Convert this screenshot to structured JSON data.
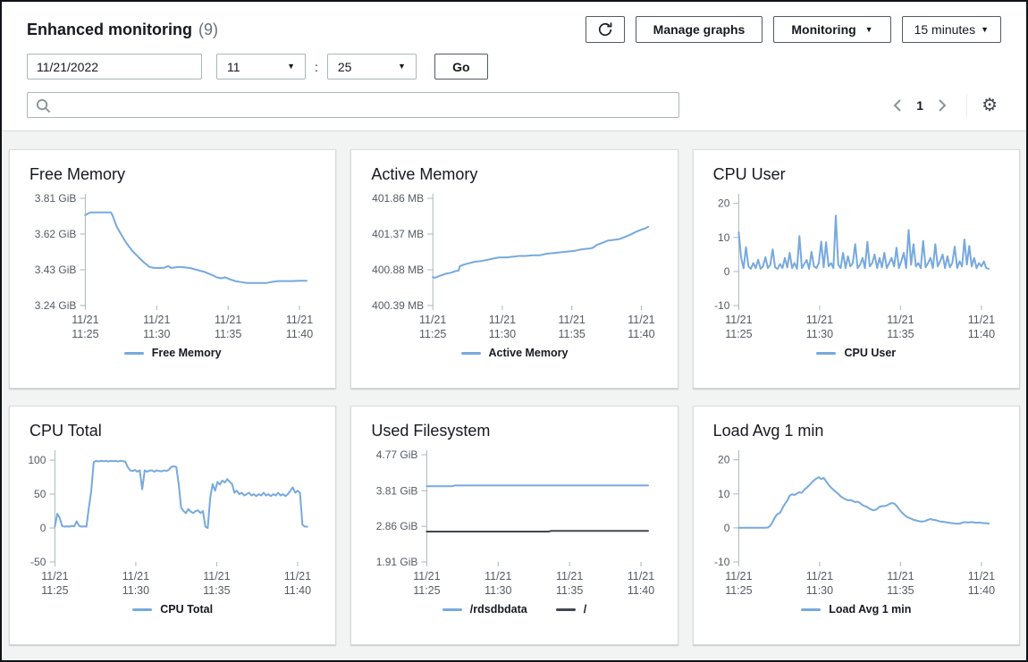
{
  "header": {
    "title": "Enhanced monitoring",
    "count": "(9)",
    "buttons": {
      "manage_graphs": "Manage graphs",
      "monitoring": "Monitoring",
      "time_range": "15 minutes"
    },
    "datetime": {
      "date": "11/21/2022",
      "hour": "11",
      "separator": ":",
      "minute": "25",
      "go": "Go"
    },
    "search": {
      "placeholder": ""
    },
    "pagination": {
      "page": "1"
    }
  },
  "colors": {
    "series_blue": "#77a9dd",
    "series_dark": "#414750",
    "axis": "#aab7b8",
    "tick_text": "#545b64"
  },
  "chart_data": [
    {
      "type": "line",
      "title": "Free Memory",
      "x_domain": [
        0,
        16
      ],
      "x_ticks": [
        {
          "pos": 0,
          "line1": "11/21",
          "line2": "11:25"
        },
        {
          "pos": 5,
          "line1": "11/21",
          "line2": "11:30"
        },
        {
          "pos": 10,
          "line1": "11/21",
          "line2": "11:35"
        },
        {
          "pos": 15,
          "line1": "11/21",
          "line2": "11:40"
        }
      ],
      "ylim": [
        3.24,
        3.81
      ],
      "y_ticks": [
        {
          "v": 3.81,
          "label": "3.81 GiB"
        },
        {
          "v": 3.62,
          "label": "3.62 GiB"
        },
        {
          "v": 3.43,
          "label": "3.43 GiB"
        },
        {
          "v": 3.24,
          "label": "3.24 GiB"
        }
      ],
      "series": [
        {
          "name": "Free Memory",
          "color": "#77a9dd",
          "points": [
            [
              0,
              3.72
            ],
            [
              0.2,
              3.73
            ],
            [
              0.4,
              3.735
            ],
            [
              1.8,
              3.735
            ],
            [
              1.9,
              3.72
            ],
            [
              2.0,
              3.7
            ],
            [
              2.2,
              3.66
            ],
            [
              2.5,
              3.62
            ],
            [
              2.9,
              3.57
            ],
            [
              3.3,
              3.53
            ],
            [
              3.7,
              3.5
            ],
            [
              4.1,
              3.47
            ],
            [
              4.5,
              3.445
            ],
            [
              4.8,
              3.44
            ],
            [
              5.5,
              3.44
            ],
            [
              5.8,
              3.45
            ],
            [
              6.0,
              3.44
            ],
            [
              6.6,
              3.445
            ],
            [
              7.3,
              3.44
            ],
            [
              7.8,
              3.43
            ],
            [
              8.3,
              3.42
            ],
            [
              8.8,
              3.405
            ],
            [
              9.2,
              3.39
            ],
            [
              9.5,
              3.385
            ],
            [
              9.8,
              3.39
            ],
            [
              10.1,
              3.38
            ],
            [
              10.5,
              3.37
            ],
            [
              10.9,
              3.365
            ],
            [
              11.3,
              3.36
            ],
            [
              12.0,
              3.36
            ],
            [
              12.7,
              3.36
            ],
            [
              13.0,
              3.365
            ],
            [
              13.5,
              3.37
            ],
            [
              14.0,
              3.37
            ],
            [
              14.5,
              3.37
            ],
            [
              15.0,
              3.372
            ],
            [
              15.5,
              3.372
            ]
          ]
        }
      ]
    },
    {
      "type": "line",
      "title": "Active Memory",
      "x_domain": [
        0,
        16
      ],
      "x_ticks": [
        {
          "pos": 0,
          "line1": "11/21",
          "line2": "11:25"
        },
        {
          "pos": 5,
          "line1": "11/21",
          "line2": "11:30"
        },
        {
          "pos": 10,
          "line1": "11/21",
          "line2": "11:35"
        },
        {
          "pos": 15,
          "line1": "11/21",
          "line2": "11:40"
        }
      ],
      "ylim": [
        400.39,
        401.86
      ],
      "y_ticks": [
        {
          "v": 401.86,
          "label": "401.86 MB"
        },
        {
          "v": 401.37,
          "label": "401.37 MB"
        },
        {
          "v": 400.88,
          "label": "400.88 MB"
        },
        {
          "v": 400.39,
          "label": "400.39 MB"
        }
      ],
      "series": [
        {
          "name": "Active Memory",
          "color": "#77a9dd",
          "points": [
            [
              0,
              400.78
            ],
            [
              0.15,
              400.77
            ],
            [
              0.4,
              400.79
            ],
            [
              0.7,
              400.81
            ],
            [
              1.0,
              400.83
            ],
            [
              1.3,
              400.84
            ],
            [
              1.6,
              400.86
            ],
            [
              1.85,
              400.87
            ],
            [
              1.95,
              400.93
            ],
            [
              2.2,
              400.95
            ],
            [
              2.6,
              400.97
            ],
            [
              3.0,
              400.99
            ],
            [
              3.5,
              401.0
            ],
            [
              4.0,
              401.02
            ],
            [
              4.5,
              401.04
            ],
            [
              4.8,
              401.05
            ],
            [
              5.3,
              401.05
            ],
            [
              5.8,
              401.06
            ],
            [
              6.2,
              401.07
            ],
            [
              6.7,
              401.07
            ],
            [
              7.2,
              401.08
            ],
            [
              7.7,
              401.08
            ],
            [
              8.2,
              401.1
            ],
            [
              8.7,
              401.11
            ],
            [
              9.2,
              401.12
            ],
            [
              9.7,
              401.13
            ],
            [
              10.2,
              401.14
            ],
            [
              10.7,
              401.16
            ],
            [
              11.2,
              401.17
            ],
            [
              11.5,
              401.18
            ],
            [
              11.8,
              401.22
            ],
            [
              12.2,
              401.25
            ],
            [
              12.6,
              401.28
            ],
            [
              13.0,
              401.29
            ],
            [
              13.4,
              401.3
            ],
            [
              13.8,
              401.33
            ],
            [
              14.2,
              401.36
            ],
            [
              14.6,
              401.4
            ],
            [
              15.0,
              401.43
            ],
            [
              15.3,
              401.45
            ],
            [
              15.5,
              401.47
            ]
          ]
        }
      ]
    },
    {
      "type": "line",
      "title": "CPU User",
      "x_domain": [
        0,
        16
      ],
      "x_ticks": [
        {
          "pos": 0,
          "line1": "11/21",
          "line2": "11:25"
        },
        {
          "pos": 5,
          "line1": "11/21",
          "line2": "11:30"
        },
        {
          "pos": 10,
          "line1": "11/21",
          "line2": "11:35"
        },
        {
          "pos": 15,
          "line1": "11/21",
          "line2": "11:40"
        }
      ],
      "ylim": [
        -10,
        21.5
      ],
      "y_ticks": [
        {
          "v": 20,
          "label": "20"
        },
        {
          "v": 10,
          "label": "10"
        },
        {
          "v": 0,
          "label": "0"
        },
        {
          "v": -10,
          "label": "-10"
        }
      ],
      "series": [
        {
          "name": "CPU User",
          "color": "#77a9dd",
          "x_start": 0,
          "x_step": 0.15,
          "values": [
            11.5,
            4,
            1,
            7.2,
            1.5,
            0.8,
            2.5,
            1,
            3.5,
            0.8,
            1.5,
            4.2,
            1,
            2,
            6.5,
            1.2,
            0.8,
            2.2,
            1,
            4,
            1.2,
            5.5,
            1,
            2.5,
            0.8,
            10.4,
            1,
            2.2,
            3.4,
            0.8,
            5.8,
            1.5,
            1,
            2.5,
            8.8,
            1.2,
            8.6,
            1.5,
            2.5,
            1,
            16.4,
            2,
            1,
            5.5,
            1,
            4.5,
            1.5,
            2.5,
            8,
            1,
            2,
            4,
            1,
            8.7,
            1.5,
            2.5,
            5,
            1,
            4,
            1.2,
            5.5,
            1,
            2.5,
            4,
            1.5,
            7,
            1,
            3,
            5.5,
            1,
            12.2,
            2,
            8,
            1.5,
            2.5,
            1,
            9,
            1.2,
            2.5,
            4,
            1,
            8,
            1.5,
            3,
            5,
            1,
            4.5,
            1.2,
            2.5,
            7.3,
            1,
            3,
            1.5,
            9.4,
            2,
            7.5,
            1.5,
            4,
            1,
            2.5,
            1.5,
            3,
            1,
            0.8
          ]
        }
      ]
    },
    {
      "type": "line",
      "title": "CPU Total",
      "x_domain": [
        0,
        16
      ],
      "x_ticks": [
        {
          "pos": 0,
          "line1": "11/21",
          "line2": "11:25"
        },
        {
          "pos": 5,
          "line1": "11/21",
          "line2": "11:30"
        },
        {
          "pos": 10,
          "line1": "11/21",
          "line2": "11:35"
        },
        {
          "pos": 15,
          "line1": "11/21",
          "line2": "11:40"
        }
      ],
      "ylim": [
        -50,
        108
      ],
      "y_ticks": [
        {
          "v": 100,
          "label": "100"
        },
        {
          "v": 50,
          "label": "50"
        },
        {
          "v": 0,
          "label": "0"
        },
        {
          "v": -50,
          "label": "-50"
        }
      ],
      "series": [
        {
          "name": "CPU Total",
          "color": "#77a9dd",
          "x_start": 0,
          "x_step": 0.15,
          "values": [
            2,
            21,
            15,
            3,
            2,
            2.5,
            2,
            3,
            2.5,
            10,
            3,
            2,
            2.5,
            2,
            30,
            55,
            97,
            99,
            98,
            99,
            98.5,
            99,
            98,
            99,
            98.5,
            99,
            98,
            99,
            98.5,
            98,
            90,
            85,
            84,
            85.5,
            83,
            85,
            57,
            85,
            83,
            84.5,
            85,
            83,
            85,
            84,
            83.5,
            85,
            84,
            86,
            90,
            91,
            90,
            65,
            30,
            25,
            22,
            28,
            24,
            22,
            25,
            26,
            22,
            25,
            2,
            0,
            45,
            65,
            55,
            68,
            64,
            70,
            67,
            72,
            68,
            65,
            52,
            55,
            50,
            52,
            48,
            50,
            52,
            48,
            50,
            47,
            50,
            48,
            52,
            48,
            50,
            47,
            50,
            48,
            52,
            48,
            50,
            47,
            50,
            55,
            60,
            52,
            55,
            52,
            5,
            2,
            2
          ]
        }
      ]
    },
    {
      "type": "line",
      "title": "Used Filesystem",
      "x_domain": [
        0,
        16
      ],
      "x_ticks": [
        {
          "pos": 0,
          "line1": "11/21",
          "line2": "11:25"
        },
        {
          "pos": 5,
          "line1": "11/21",
          "line2": "11:30"
        },
        {
          "pos": 10,
          "line1": "11/21",
          "line2": "11:35"
        },
        {
          "pos": 15,
          "line1": "11/21",
          "line2": "11:40"
        }
      ],
      "ylim": [
        1.91,
        4.77
      ],
      "y_ticks": [
        {
          "v": 4.77,
          "label": "4.77 GiB"
        },
        {
          "v": 3.81,
          "label": "3.81 GiB"
        },
        {
          "v": 2.86,
          "label": "2.86 GiB"
        },
        {
          "v": 1.91,
          "label": "1.91 GiB"
        }
      ],
      "series": [
        {
          "name": "/rdsdbdata",
          "color": "#77a9dd",
          "points": [
            [
              0,
              3.93
            ],
            [
              1.8,
              3.93
            ],
            [
              1.95,
              3.95
            ],
            [
              15.5,
              3.95
            ]
          ]
        },
        {
          "name": "/",
          "color": "#414750",
          "points": [
            [
              0,
              2.72
            ],
            [
              8.55,
              2.72
            ],
            [
              8.7,
              2.74
            ],
            [
              15.5,
              2.74
            ]
          ]
        }
      ]
    },
    {
      "type": "line",
      "title": "Load Avg 1 min",
      "x_domain": [
        0,
        16
      ],
      "x_ticks": [
        {
          "pos": 0,
          "line1": "11/21",
          "line2": "11:25"
        },
        {
          "pos": 5,
          "line1": "11/21",
          "line2": "11:30"
        },
        {
          "pos": 10,
          "line1": "11/21",
          "line2": "11:35"
        },
        {
          "pos": 15,
          "line1": "11/21",
          "line2": "11:40"
        }
      ],
      "ylim": [
        -10,
        21.5
      ],
      "y_ticks": [
        {
          "v": 20,
          "label": "20"
        },
        {
          "v": 10,
          "label": "10"
        },
        {
          "v": 0,
          "label": "0"
        },
        {
          "v": -10,
          "label": "-10"
        }
      ],
      "series": [
        {
          "name": "Load Avg 1 min",
          "color": "#77a9dd",
          "x_start": 0,
          "x_step": 0.15,
          "values": [
            0.05,
            0.05,
            0.05,
            0.05,
            0.05,
            0.05,
            0.05,
            0.05,
            0.05,
            0.05,
            0.05,
            0.05,
            0.1,
            0.6,
            1.8,
            3.2,
            4.1,
            4.4,
            5.8,
            7.0,
            8.0,
            9.5,
            9.9,
            9.7,
            10.1,
            10.5,
            10.3,
            11.2,
            11.8,
            12.5,
            13.2,
            14.0,
            14.5,
            14.9,
            14.3,
            14.7,
            13.7,
            12.7,
            11.9,
            11.2,
            10.6,
            10.0,
            9.3,
            8.8,
            8.4,
            8.1,
            8.2,
            7.9,
            7.6,
            7.7,
            7.3,
            6.7,
            6.4,
            6.1,
            5.6,
            5.3,
            5.2,
            5.6,
            6.2,
            6.4,
            6.4,
            6.6,
            7.0,
            7.3,
            7.2,
            6.5,
            5.6,
            4.7,
            4.0,
            3.4,
            3.0,
            2.7,
            2.4,
            2.2,
            2.0,
            1.9,
            1.9,
            2.1,
            2.4,
            2.6,
            2.4,
            2.3,
            2.1,
            1.9,
            1.8,
            1.7,
            1.6,
            1.5,
            1.4,
            1.3,
            1.2,
            1.3,
            1.5,
            1.7,
            1.6,
            1.6,
            1.7,
            1.6,
            1.5,
            1.6,
            1.5,
            1.4,
            1.4,
            1.3
          ]
        }
      ]
    }
  ]
}
